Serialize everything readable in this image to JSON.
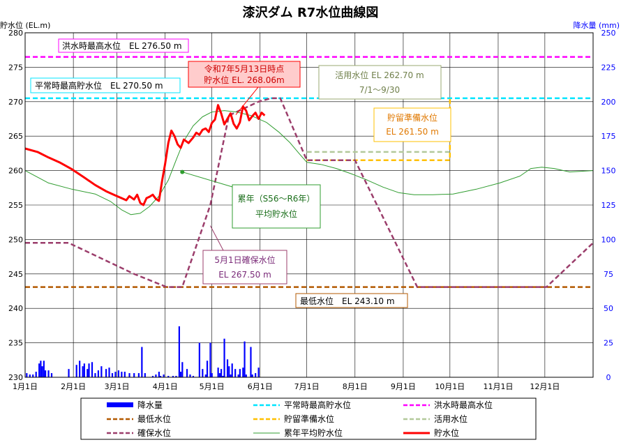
{
  "chart_data": {
    "type": "line",
    "title": "漆沢ダム R7水位曲線図",
    "ylabel_left": "貯水位 (EL.m)",
    "ylabel_right": "降水量 (mm)",
    "ylim_left": [
      230,
      280
    ],
    "ylim_right": [
      0,
      250
    ],
    "yticks_left": [
      "280",
      "275",
      "270",
      "265",
      "260",
      "255",
      "250",
      "245",
      "240",
      "235",
      "230"
    ],
    "yticks_right": [
      "250",
      "225",
      "200",
      "175",
      "150",
      "125",
      "100",
      "75",
      "50",
      "25",
      "0"
    ],
    "x_domain_days": [
      0,
      365
    ],
    "month_labels": [
      "1月1日",
      "2月1日",
      "3月1日",
      "4月1日",
      "5月1日",
      "6月1日",
      "7月1日",
      "8月1日",
      "9月1日",
      "10月1日",
      "11月1日",
      "12月1日"
    ],
    "grid": true,
    "colors": {
      "axis_left": "#000000",
      "axis_right": "#0000ff",
      "flood_max": "#ff00ff",
      "normal_max": "#00e5ff",
      "min": "#b35900",
      "reserve_prep": "#ffc000",
      "active": "#b3c99a",
      "secure": "#9b3d6b",
      "average": "#2f9c2f",
      "current": "#ff0000",
      "rain": "#0000ff"
    },
    "series": [
      {
        "name": "洪水時最高水位",
        "style": "dashed",
        "values": [
          [
            0,
            276.5
          ],
          [
            365,
            276.5
          ]
        ]
      },
      {
        "name": "平常時最高貯水位",
        "style": "dashed",
        "values": [
          [
            0,
            270.5
          ],
          [
            365,
            270.5
          ]
        ]
      },
      {
        "name": "最低水位",
        "style": "dashed",
        "values": [
          [
            0,
            243.1
          ],
          [
            365,
            243.1
          ]
        ]
      },
      {
        "name": "貯留準備水位",
        "style": "dashed",
        "values": [
          [
            181,
            261.5
          ],
          [
            273,
            261.5
          ],
          [
            273,
            270.5
          ]
        ]
      },
      {
        "name": "活用水位",
        "style": "dashed",
        "values": [
          [
            181,
            262.7
          ],
          [
            273,
            262.7
          ]
        ]
      },
      {
        "name": "確保水位",
        "style": "dashed",
        "values": [
          [
            0,
            249.5
          ],
          [
            28,
            249.5
          ],
          [
            70,
            245.0
          ],
          [
            91,
            243.1
          ],
          [
            101,
            243.1
          ],
          [
            119,
            255.0
          ],
          [
            131,
            268.0
          ],
          [
            150,
            270.0
          ],
          [
            158,
            270.5
          ],
          [
            164,
            270.5
          ],
          [
            181,
            261.5
          ],
          [
            212,
            261.5
          ],
          [
            252,
            243.1
          ],
          [
            335,
            243.1
          ],
          [
            365,
            249.5
          ]
        ]
      },
      {
        "name": "累年平均貯水位",
        "style": "solid",
        "values": [
          [
            0,
            260.0
          ],
          [
            15,
            258.2
          ],
          [
            30,
            257.3
          ],
          [
            45,
            256.6
          ],
          [
            55,
            255.5
          ],
          [
            62,
            254.3
          ],
          [
            68,
            253.6
          ],
          [
            74,
            253.8
          ],
          [
            80,
            254.8
          ],
          [
            86,
            256.3
          ],
          [
            92,
            258.6
          ],
          [
            97,
            261.5
          ],
          [
            102,
            264.3
          ],
          [
            108,
            266.5
          ],
          [
            114,
            267.8
          ],
          [
            120,
            268.5
          ],
          [
            128,
            268.7
          ],
          [
            136,
            268.5
          ],
          [
            145,
            268.0
          ],
          [
            155,
            267.0
          ],
          [
            163,
            265.6
          ],
          [
            170,
            264.1
          ],
          [
            176,
            262.5
          ],
          [
            181,
            261.2
          ],
          [
            190,
            260.9
          ],
          [
            200,
            260.3
          ],
          [
            210,
            259.5
          ],
          [
            220,
            258.6
          ],
          [
            230,
            257.6
          ],
          [
            240,
            256.8
          ],
          [
            250,
            256.5
          ],
          [
            262,
            256.5
          ],
          [
            275,
            256.6
          ],
          [
            290,
            257.3
          ],
          [
            305,
            258.2
          ],
          [
            318,
            259.2
          ],
          [
            325,
            260.3
          ],
          [
            332,
            260.5
          ],
          [
            340,
            260.3
          ],
          [
            350,
            259.8
          ],
          [
            365,
            260.0
          ]
        ]
      },
      {
        "name": "貯水位",
        "style": "solid",
        "values": [
          [
            0,
            263.2
          ],
          [
            8,
            262.7
          ],
          [
            15,
            261.9
          ],
          [
            22,
            261.2
          ],
          [
            30,
            260.2
          ],
          [
            38,
            259.0
          ],
          [
            45,
            257.9
          ],
          [
            52,
            257.0
          ],
          [
            58,
            256.4
          ],
          [
            62,
            256.0
          ],
          [
            65,
            255.7
          ],
          [
            67,
            256.3
          ],
          [
            70,
            255.8
          ],
          [
            72,
            256.5
          ],
          [
            74,
            255.3
          ],
          [
            76,
            255.0
          ],
          [
            78,
            256.0
          ],
          [
            80,
            256.2
          ],
          [
            82,
            256.5
          ],
          [
            84,
            255.9
          ],
          [
            86,
            255.6
          ],
          [
            88,
            258.5
          ],
          [
            90,
            261.0
          ],
          [
            92,
            264.0
          ],
          [
            94,
            265.8
          ],
          [
            96,
            265.0
          ],
          [
            98,
            263.8
          ],
          [
            100,
            263.3
          ],
          [
            102,
            264.5
          ],
          [
            105,
            264.0
          ],
          [
            108,
            264.8
          ],
          [
            110,
            265.5
          ],
          [
            112,
            265.2
          ],
          [
            114,
            265.9
          ],
          [
            116,
            266.1
          ],
          [
            118,
            265.6
          ],
          [
            120,
            266.9
          ],
          [
            122,
            267.4
          ],
          [
            124,
            269.5
          ],
          [
            126,
            268.3
          ],
          [
            128,
            266.7
          ],
          [
            130,
            267.5
          ],
          [
            132,
            268.3
          ],
          [
            134,
            266.8
          ],
          [
            136,
            266.1
          ],
          [
            138,
            267.0
          ],
          [
            140,
            269.3
          ],
          [
            142,
            268.7
          ],
          [
            144,
            267.3
          ],
          [
            146,
            267.9
          ],
          [
            148,
            268.4
          ],
          [
            150,
            267.5
          ],
          [
            152,
            268.4
          ],
          [
            154,
            268.0
          ]
        ]
      }
    ],
    "precipitation": [
      [
        1,
        3
      ],
      [
        3,
        2
      ],
      [
        5,
        2
      ],
      [
        7,
        4
      ],
      [
        9,
        10
      ],
      [
        10,
        12
      ],
      [
        11,
        8
      ],
      [
        12,
        12
      ],
      [
        13,
        5
      ],
      [
        15,
        5
      ],
      [
        17,
        3
      ],
      [
        28,
        6
      ],
      [
        33,
        9
      ],
      [
        35,
        12
      ],
      [
        37,
        8
      ],
      [
        38,
        10
      ],
      [
        40,
        6
      ],
      [
        41,
        10
      ],
      [
        43,
        11
      ],
      [
        45,
        3
      ],
      [
        47,
        5
      ],
      [
        49,
        8
      ],
      [
        52,
        6
      ],
      [
        54,
        7
      ],
      [
        56,
        3
      ],
      [
        58,
        4
      ],
      [
        60,
        5
      ],
      [
        62,
        4
      ],
      [
        64,
        4
      ],
      [
        67,
        3
      ],
      [
        70,
        3
      ],
      [
        73,
        3
      ],
      [
        75,
        22
      ],
      [
        77,
        3
      ],
      [
        82,
        1
      ],
      [
        84,
        2
      ],
      [
        86,
        4
      ],
      [
        87,
        1
      ],
      [
        89,
        2
      ],
      [
        92,
        1
      ],
      [
        95,
        1
      ],
      [
        97,
        1
      ],
      [
        99,
        37
      ],
      [
        100,
        4
      ],
      [
        101,
        11
      ],
      [
        104,
        6
      ],
      [
        106,
        2
      ],
      [
        108,
        1
      ],
      [
        112,
        25
      ],
      [
        114,
        6
      ],
      [
        116,
        2
      ],
      [
        117,
        12
      ],
      [
        119,
        25
      ],
      [
        120,
        3
      ],
      [
        124,
        7
      ],
      [
        125,
        3
      ],
      [
        126,
        6
      ],
      [
        127,
        1
      ],
      [
        128,
        28
      ],
      [
        130,
        13
      ],
      [
        131,
        8
      ],
      [
        132,
        2
      ],
      [
        133,
        10
      ],
      [
        135,
        6
      ],
      [
        137,
        2
      ],
      [
        138,
        6
      ],
      [
        140,
        7
      ],
      [
        141,
        26
      ],
      [
        142,
        2
      ],
      [
        145,
        22
      ],
      [
        146,
        2
      ],
      [
        148,
        3
      ],
      [
        150,
        7
      ]
    ],
    "annotations": [
      {
        "id": "flood",
        "lines": [
          "洪水時最高水位　EL 276.50 m"
        ]
      },
      {
        "id": "normal",
        "lines": [
          "平常時最高貯水位　EL 270.50 m"
        ]
      },
      {
        "id": "current",
        "lines": [
          "令和7年5月13日時点",
          "貯水位 EL. 268.06m"
        ]
      },
      {
        "id": "active",
        "lines": [
          "活用水位 EL 262.70 m",
          "7/1～9/30"
        ]
      },
      {
        "id": "prep",
        "lines": [
          "貯留準備水位",
          "EL 261.50 m"
        ]
      },
      {
        "id": "avg",
        "lines": [
          "累年（S56～R6年）",
          "平均貯水位"
        ]
      },
      {
        "id": "secure",
        "lines": [
          "5月1日確保水位",
          "EL 267.50 m"
        ]
      },
      {
        "id": "min",
        "lines": [
          "最低水位　EL 243.10 m"
        ]
      }
    ],
    "legend": [
      {
        "label": "降水量",
        "kind": "bar",
        "color": "#0000ff"
      },
      {
        "label": "平常時最高貯水位",
        "kind": "dash",
        "color": "#00e5ff"
      },
      {
        "label": "洪水時最高水位",
        "kind": "dash",
        "color": "#ff00ff"
      },
      {
        "label": "最低水位",
        "kind": "dash",
        "color": "#b35900"
      },
      {
        "label": "貯留準備水位",
        "kind": "dash",
        "color": "#ffc000"
      },
      {
        "label": "活用水位",
        "kind": "dash",
        "color": "#b3c99a"
      },
      {
        "label": "確保水位",
        "kind": "dash",
        "color": "#9b3d6b"
      },
      {
        "label": "累年平均貯水位",
        "kind": "thin",
        "color": "#2f9c2f"
      },
      {
        "label": "貯水位",
        "kind": "thick",
        "color": "#ff0000"
      }
    ]
  }
}
